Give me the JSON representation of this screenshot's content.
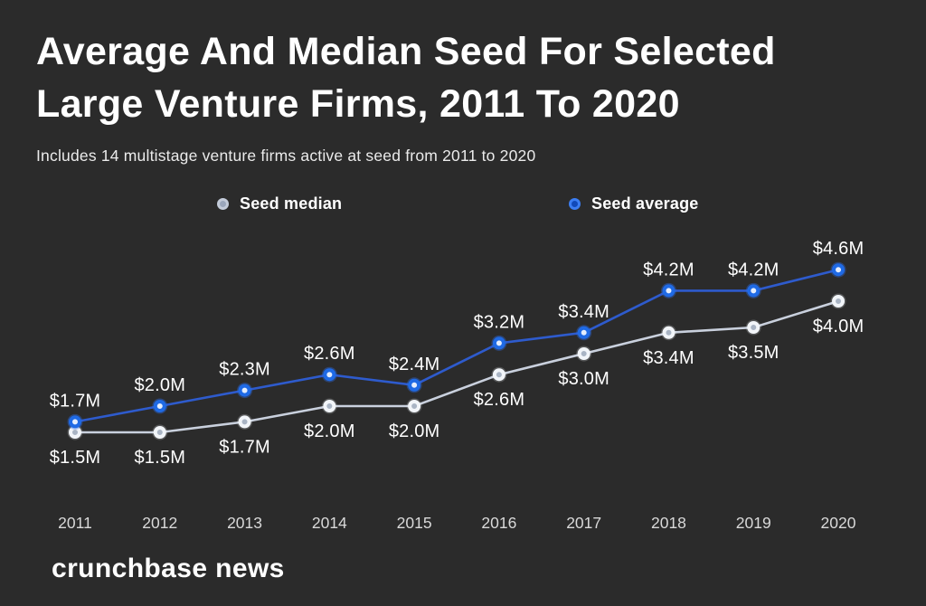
{
  "page": {
    "background_color": "#2b2b2b",
    "text_color": "#ffffff"
  },
  "chart_data": {
    "type": "line",
    "title_lines": [
      "Average And Median Seed For Selected",
      "Large Venture Firms, 2011 To 2020"
    ],
    "subtitle": "Includes 14 multistage venture firms active at seed from 2011 to 2020",
    "unit": "$M",
    "categories": [
      "2011",
      "2012",
      "2013",
      "2014",
      "2015",
      "2016",
      "2017",
      "2018",
      "2019",
      "2020"
    ],
    "series": [
      {
        "name": "Seed median",
        "values": [
          1.5,
          1.5,
          1.7,
          2.0,
          2.0,
          2.6,
          3.0,
          3.4,
          3.5,
          4.0
        ],
        "labels": [
          "$1.5M",
          "$1.5M",
          "$1.7M",
          "$2.0M",
          "$2.0M",
          "$2.6M",
          "$3.0M",
          "$3.4M",
          "$3.5M",
          "$4.0M"
        ],
        "label_position": "below",
        "line_color": "#c9d0dd",
        "dot_ring_color": "#f2f5f9",
        "dot_center_color": "#a9b4c4",
        "glow_color": "rgba(235,240,248,0.22)",
        "legend_ring_color": "#c3cbd9",
        "legend_center_color": "#9aa6bb"
      },
      {
        "name": "Seed average",
        "values": [
          1.7,
          2.0,
          2.3,
          2.6,
          2.4,
          3.2,
          3.4,
          4.2,
          4.2,
          4.6
        ],
        "labels": [
          "$1.7M",
          "$2.0M",
          "$2.3M",
          "$2.6M",
          "$2.4M",
          "$3.2M",
          "$3.4M",
          "$4.2M",
          "$4.2M",
          "$4.6M"
        ],
        "label_position": "above",
        "line_color": "#2e5bcd",
        "dot_ring_color": "#1f6ae5",
        "dot_center_color": "#e4edfd",
        "glow_color": "rgba(47,107,228,0.40)",
        "legend_ring_color": "#3b7df2",
        "legend_center_color": "#1149b8"
      }
    ],
    "ylim": [
      1.2,
      5.0
    ],
    "grid": false,
    "value_axis_visible": false,
    "legend_position": "top"
  },
  "footer": {
    "logo_text": "crunchbase news"
  }
}
